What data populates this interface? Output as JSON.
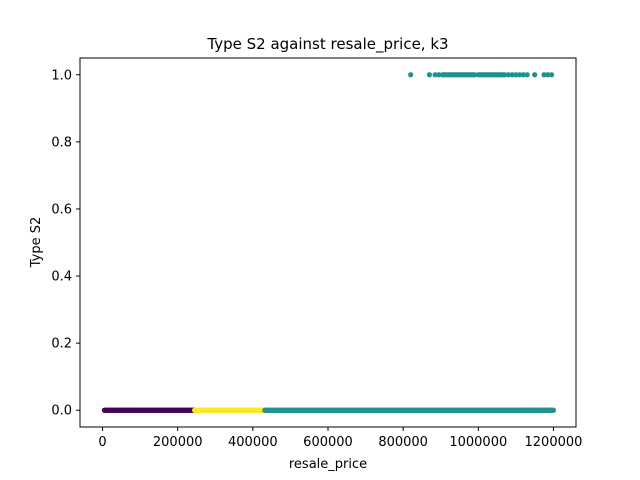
{
  "chart_data": {
    "type": "scatter",
    "title": "Type S2 against resale_price, k3",
    "xlabel": "resale_price",
    "ylabel": "Type S2",
    "xlim": [
      -60000,
      1260000
    ],
    "ylim": [
      -0.05,
      1.05
    ],
    "xticks": [
      0,
      200000,
      400000,
      600000,
      800000,
      1000000,
      1200000
    ],
    "xtick_labels": [
      "0",
      "200000",
      "400000",
      "600000",
      "800000",
      "1000000",
      "1200000"
    ],
    "yticks": [
      0.0,
      0.2,
      0.4,
      0.6,
      0.8,
      1.0
    ],
    "ytick_labels": [
      "0.0",
      "0.2",
      "0.4",
      "0.6",
      "0.8",
      "1.0"
    ],
    "grid": false,
    "series": [
      {
        "color": "#440154",
        "x_range": [
          5000,
          245000
        ],
        "y": 0
      },
      {
        "color": "#fde725",
        "x_range": [
          245000,
          432000
        ],
        "y": 0
      },
      {
        "color": "#21918c",
        "x_range": [
          432000,
          1200000
        ],
        "y": 0,
        "extra_x": [
          1125000,
          1135000,
          1145000,
          1160000,
          1170000,
          1180000,
          1195000,
          1200000
        ]
      },
      {
        "color": "#21918c",
        "y": 1,
        "x": [
          820000,
          870000,
          885000,
          895000,
          905000,
          910000,
          915000,
          920000,
          925000,
          930000,
          935000,
          940000,
          945000,
          950000,
          955000,
          960000,
          965000,
          970000,
          975000,
          980000,
          985000,
          990000,
          1000000,
          1005000,
          1010000,
          1015000,
          1020000,
          1025000,
          1030000,
          1035000,
          1040000,
          1045000,
          1050000,
          1055000,
          1060000,
          1065000,
          1070000,
          1080000,
          1090000,
          1100000,
          1110000,
          1120000,
          1130000,
          1150000,
          1175000,
          1185000,
          1195000
        ]
      }
    ]
  }
}
